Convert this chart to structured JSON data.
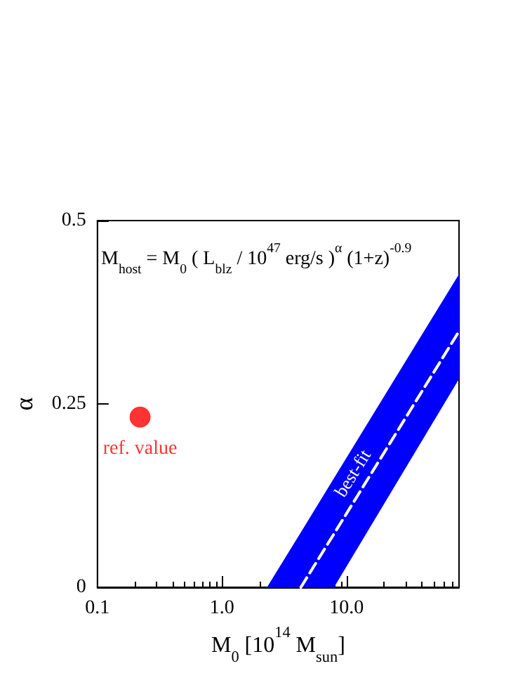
{
  "chart_data": {
    "type": "line",
    "xlabel": "M$_{0}$ [10$^{14}$ M$_{sun}$]",
    "ylabel": "α",
    "annotations": [
      "M$_{host}$ = M$_{0}$ ( L$_{blz}$ / 10$^{47}$ erg/s )$^{α}$ (1+z)$^{-0.9}$"
    ],
    "log": "x",
    "grid": false,
    "legend": false,
    "xlim": [
      0.1,
      80
    ],
    "xticks": [
      {
        "value": 0.1,
        "label": "0.1"
      },
      {
        "value": 1,
        "label": "1.0"
      },
      {
        "value": 10,
        "label": "10.0"
      }
    ],
    "ylim": [
      0,
      0.5
    ],
    "yticks": [
      0,
      0.25,
      0.5
    ],
    "series": [
      {
        "name": "best-fit",
        "color": "#ffffff",
        "line_style": "dashed",
        "marker": "none",
        "x": [
          2.3,
          4.3,
          7.94,
          80
        ],
        "values": [
          null,
          0,
          0.073,
          0.349
        ],
        "lower": [
          0,
          0,
          0,
          0.284
        ],
        "upper": [
          0,
          0.075,
          0.149,
          0.427
        ]
      },
      {
        "type": "scatter",
        "name": "ref. value",
        "color": "#ff0000",
        "marker": "circle",
        "x": [
          0.22
        ],
        "values": [
          0.232
        ]
      }
    ]
  }
}
